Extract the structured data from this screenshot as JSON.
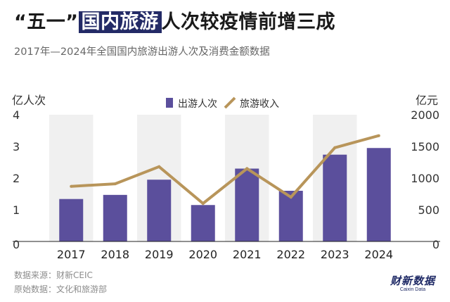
{
  "headline": {
    "before": "“五一”",
    "highlight": "国内旅游",
    "after": "人次较疫情前增三成"
  },
  "subtitle": "2017年—2024年全国国内旅游出游人次及消费金额数据",
  "footer": {
    "source": "数据来源：财新CEIC",
    "origin": "原始数据：文化和旅游部"
  },
  "logo": {
    "main": "财新数据",
    "sub": "Caixin Data"
  },
  "colors": {
    "bar": "#5b4f9c",
    "line": "#b8955a",
    "highlight_bg": "#232a66",
    "band": "#f0f0f0"
  },
  "chart_data": {
    "type": "bar",
    "categories": [
      "2017",
      "2018",
      "2019",
      "2020",
      "2021",
      "2022",
      "2023",
      "2024"
    ],
    "legend_position": "top-center",
    "grid": false,
    "left_axis": {
      "label": "亿人次",
      "ticks": [
        0,
        1,
        2,
        3,
        4
      ],
      "range": [
        0,
        4
      ]
    },
    "right_axis": {
      "label": "亿元",
      "ticks": [
        0,
        500,
        1000,
        1500,
        2000
      ],
      "range": [
        0,
        2000
      ]
    },
    "series": [
      {
        "name": "出游人次",
        "type": "bar",
        "axis": "left",
        "values": [
          1.34,
          1.47,
          1.95,
          1.15,
          2.3,
          1.6,
          2.74,
          2.95
        ]
      },
      {
        "name": "旅游收入",
        "type": "line",
        "axis": "right",
        "values": [
          870,
          910,
          1180,
          600,
          1150,
          700,
          1480,
          1670
        ]
      }
    ]
  }
}
